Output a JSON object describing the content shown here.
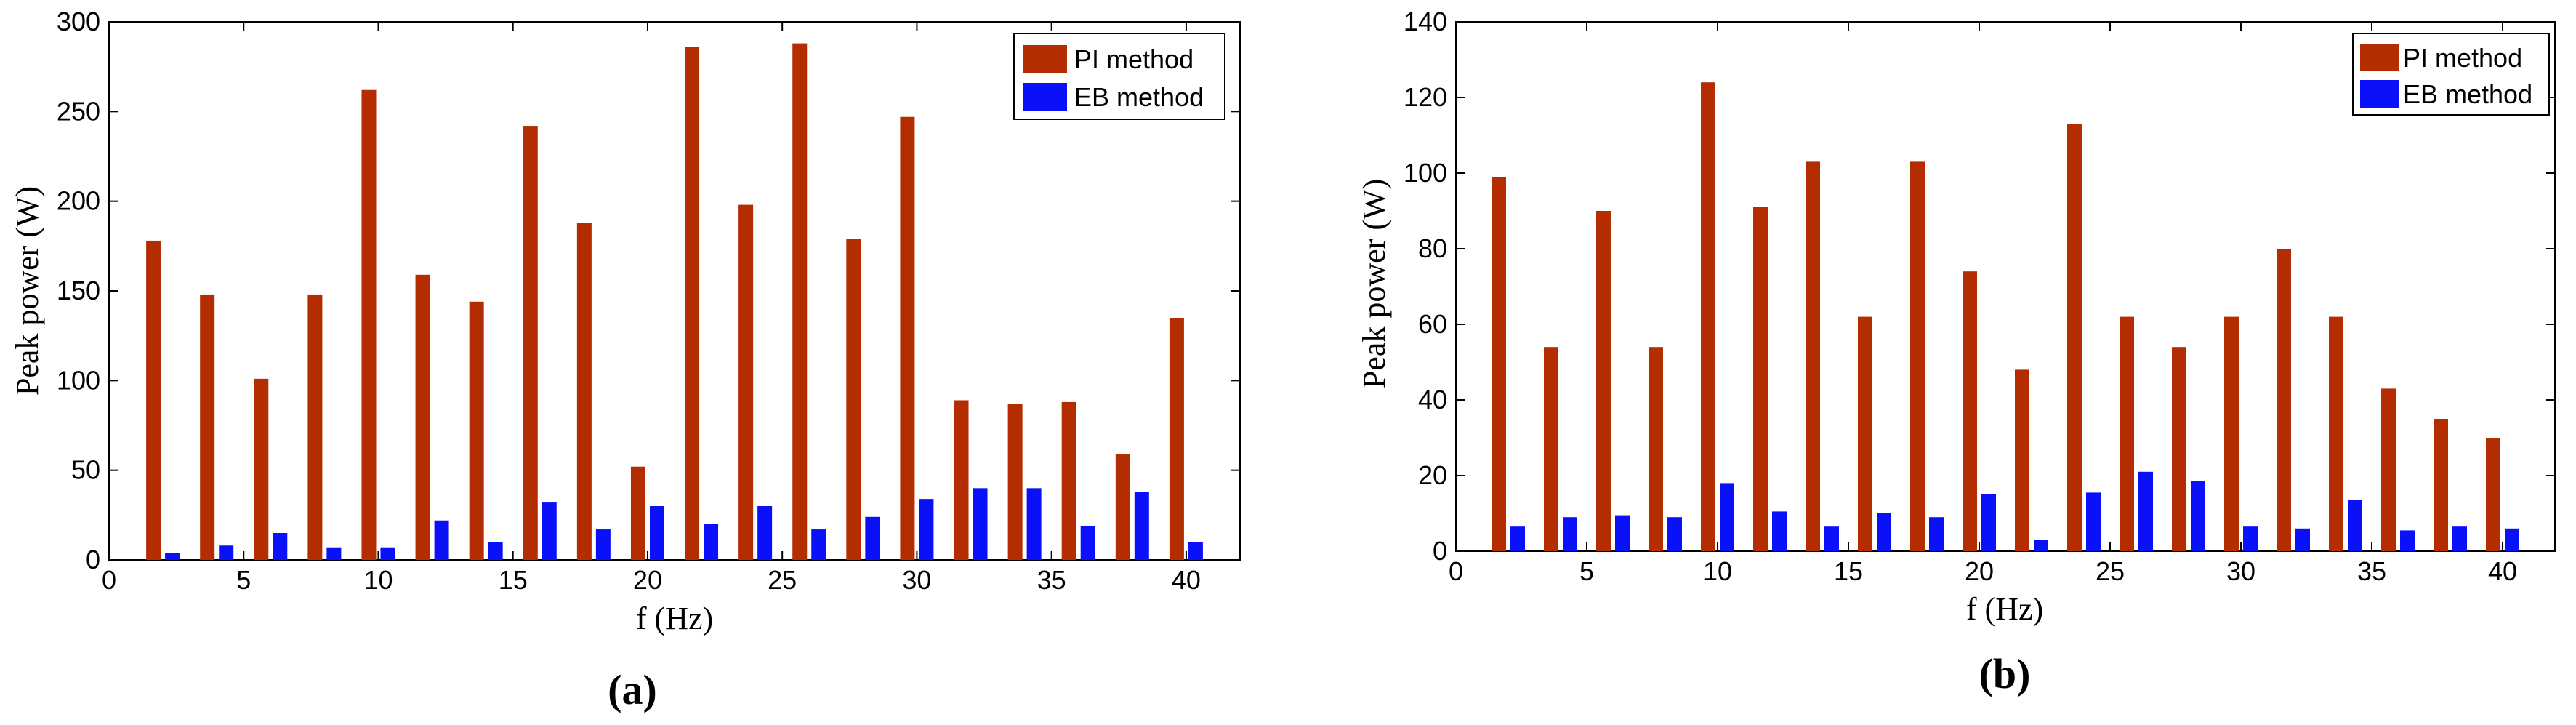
{
  "colors": {
    "pi": "#b32d00",
    "eb": "#0a10f8",
    "axis": "#000000"
  },
  "chart_data": [
    {
      "id": "a",
      "type": "bar",
      "panel_label": "(a)",
      "xlabel": "f (Hz)",
      "ylabel": "Peak power (W)",
      "xlim": [
        0,
        42
      ],
      "ylim": [
        0,
        300
      ],
      "xticks": [
        0,
        5,
        10,
        15,
        20,
        25,
        30,
        35,
        40
      ],
      "yticks": [
        0,
        50,
        100,
        150,
        200,
        250,
        300
      ],
      "legend": [
        "PI method",
        "EB method"
      ],
      "legend_position": "top-right",
      "series": [
        {
          "name": "PI method",
          "x": [
            2,
            4,
            6,
            8,
            10,
            12,
            14,
            16,
            18,
            20,
            22,
            24,
            26,
            28,
            30,
            32,
            34,
            36,
            38,
            40
          ],
          "values": [
            178,
            148,
            101,
            148,
            262,
            159,
            144,
            242,
            188,
            52,
            286,
            198,
            288,
            179,
            247,
            89,
            87,
            88,
            59,
            135
          ]
        },
        {
          "name": "EB method",
          "x": [
            2,
            4,
            6,
            8,
            10,
            12,
            14,
            16,
            18,
            20,
            22,
            24,
            26,
            28,
            30,
            32,
            34,
            36,
            38,
            40
          ],
          "values": [
            4,
            8,
            15,
            7,
            7,
            22,
            10,
            32,
            17,
            30,
            20,
            30,
            17,
            24,
            34,
            40,
            40,
            19,
            38,
            10
          ]
        }
      ]
    },
    {
      "id": "b",
      "type": "bar",
      "panel_label": "(b)",
      "xlabel": "f (Hz)",
      "ylabel": "Peak power (W)",
      "xlim": [
        0,
        42
      ],
      "ylim": [
        0,
        140
      ],
      "xticks": [
        0,
        5,
        10,
        15,
        20,
        25,
        30,
        35,
        40
      ],
      "yticks": [
        0,
        20,
        40,
        60,
        80,
        100,
        120,
        140
      ],
      "legend": [
        "PI method",
        "EB method"
      ],
      "legend_position": "top-right",
      "series": [
        {
          "name": "PI method",
          "x": [
            2,
            4,
            6,
            8,
            10,
            12,
            14,
            16,
            18,
            20,
            22,
            24,
            26,
            28,
            30,
            32,
            34,
            36,
            38,
            40
          ],
          "values": [
            99,
            54,
            90,
            54,
            124,
            91,
            103,
            62,
            103,
            74,
            48,
            113,
            62,
            54,
            62,
            80,
            62,
            43,
            35,
            30
          ]
        },
        {
          "name": "EB method",
          "x": [
            2,
            4,
            6,
            8,
            10,
            12,
            14,
            16,
            18,
            20,
            22,
            24,
            26,
            28,
            30,
            32,
            34,
            36,
            38,
            40
          ],
          "values": [
            6.5,
            9,
            9.5,
            9,
            18,
            10.5,
            6.5,
            10,
            9,
            15,
            3,
            15.5,
            21,
            18.5,
            6.5,
            6,
            13.5,
            5.5,
            6.5,
            6
          ]
        }
      ]
    }
  ]
}
